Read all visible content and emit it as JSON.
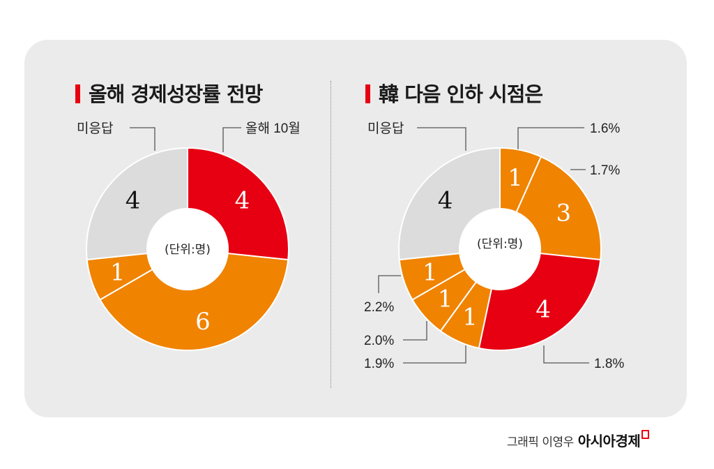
{
  "colors": {
    "red": "#e60012",
    "orange": "#f08300",
    "gray": "#dcdcdc",
    "background": "#ebebeb"
  },
  "chart_data": [
    {
      "type": "pie",
      "title": "올해 경제성장률 전망",
      "unit_label": "(단위:명)",
      "slices": [
        {
          "label": "올해 10월",
          "value": 4,
          "color": "#e60012",
          "show_label": true
        },
        {
          "label": "",
          "value": 6,
          "color": "#f08300",
          "show_label": false
        },
        {
          "label": "",
          "value": 1,
          "color": "#f08300",
          "show_label": false
        },
        {
          "label": "미응답",
          "value": 4,
          "color": "#dcdcdc",
          "show_label": true
        }
      ]
    },
    {
      "type": "pie",
      "title": "韓 다음 인하 시점은",
      "unit_label": "(단위:명)",
      "slices": [
        {
          "label": "1.6%",
          "value": 1,
          "color": "#f08300"
        },
        {
          "label": "1.7%",
          "value": 3,
          "color": "#f08300"
        },
        {
          "label": "1.8%",
          "value": 4,
          "color": "#e60012"
        },
        {
          "label": "1.9%",
          "value": 1,
          "color": "#f08300"
        },
        {
          "label": "2.0%",
          "value": 1,
          "color": "#f08300"
        },
        {
          "label": "2.2%",
          "value": 1,
          "color": "#f08300"
        },
        {
          "label": "미응답",
          "value": 4,
          "color": "#dcdcdc"
        }
      ]
    }
  ],
  "credit": {
    "author": "그래픽 이영우",
    "brand": "아시아경제"
  }
}
